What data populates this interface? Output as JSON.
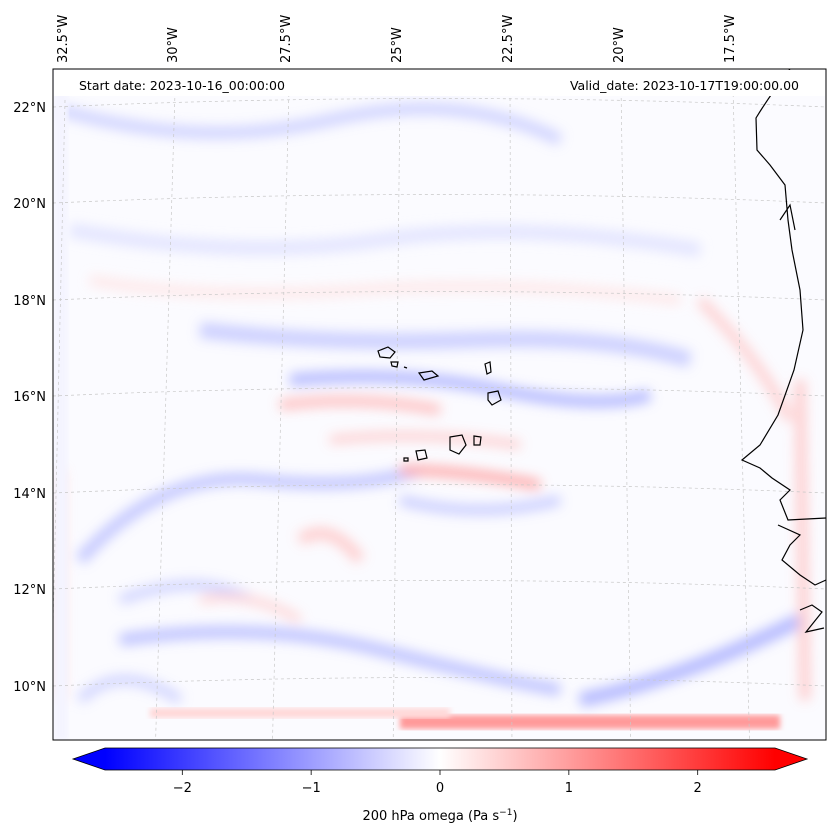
{
  "map": {
    "start_date": "Start date: 2023-10-16_00:00:00",
    "valid_date": "Valid_date: 2023-10-17T19:00:00.00",
    "lon_labels": [
      "32.5°W",
      "30°W",
      "27.5°W",
      "25°W",
      "22.5°W",
      "20°W",
      "17.5°W"
    ],
    "lat_labels": [
      "22°N",
      "20°N",
      "18°N",
      "16°N",
      "14°N",
      "12°N",
      "10°N"
    ],
    "colorbar": {
      "ticks": [
        "−2",
        "−1",
        "0",
        "1",
        "2"
      ],
      "tick_values": [
        -2,
        -1,
        0,
        1,
        2
      ],
      "range": [
        -2.6,
        2.6
      ],
      "low_color": "#0000ff",
      "mid_color": "#ffffff",
      "high_color": "#ff0000",
      "label_main": "200 hPa omega (Pa s",
      "label_exp": "−1",
      "label_end": ")"
    }
  }
}
